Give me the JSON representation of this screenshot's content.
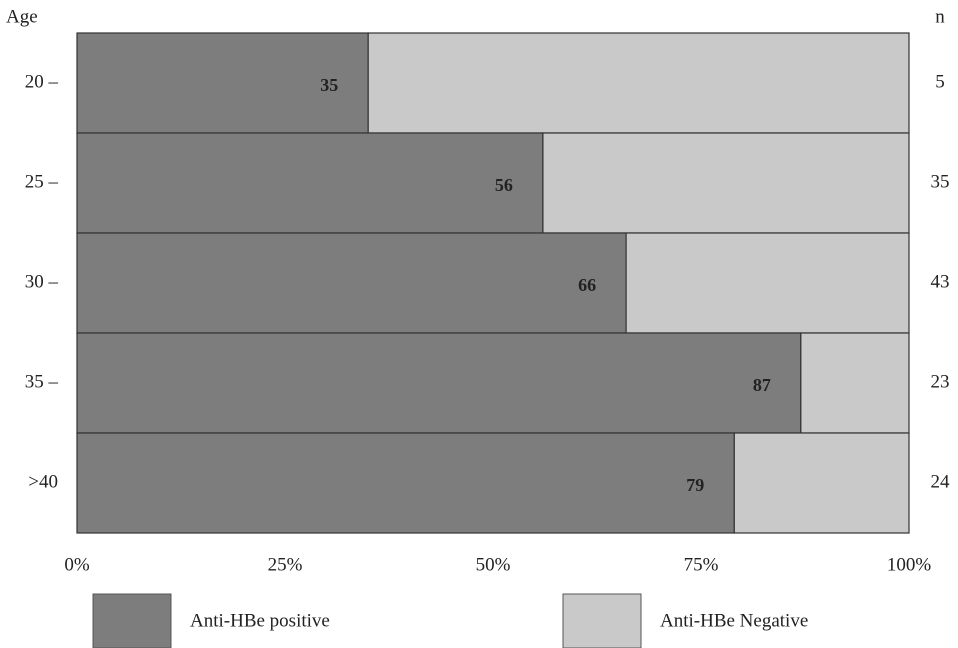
{
  "chart_data": {
    "type": "stacked_bar_horizontal",
    "y_axis_label": "Age",
    "right_axis_label": "n",
    "categories": [
      "20 –",
      "25 –",
      "30 –",
      "35 –",
      ">40"
    ],
    "n_values": [
      5,
      35,
      43,
      23,
      24
    ],
    "series": [
      {
        "name": "Anti-HBe positive",
        "color": "#7d7d7d",
        "values": [
          35,
          56,
          66,
          87,
          79
        ]
      },
      {
        "name": "Anti-HBe Negative",
        "color": "#c9c9c9",
        "values": [
          65,
          44,
          34,
          13,
          21
        ]
      }
    ],
    "xlim": [
      0,
      100
    ],
    "xticks": [
      {
        "value": 0,
        "label": "0%"
      },
      {
        "value": 25,
        "label": "25%"
      },
      {
        "value": 50,
        "label": "50%"
      },
      {
        "value": 75,
        "label": "75%"
      },
      {
        "value": 100,
        "label": "100%"
      }
    ]
  }
}
